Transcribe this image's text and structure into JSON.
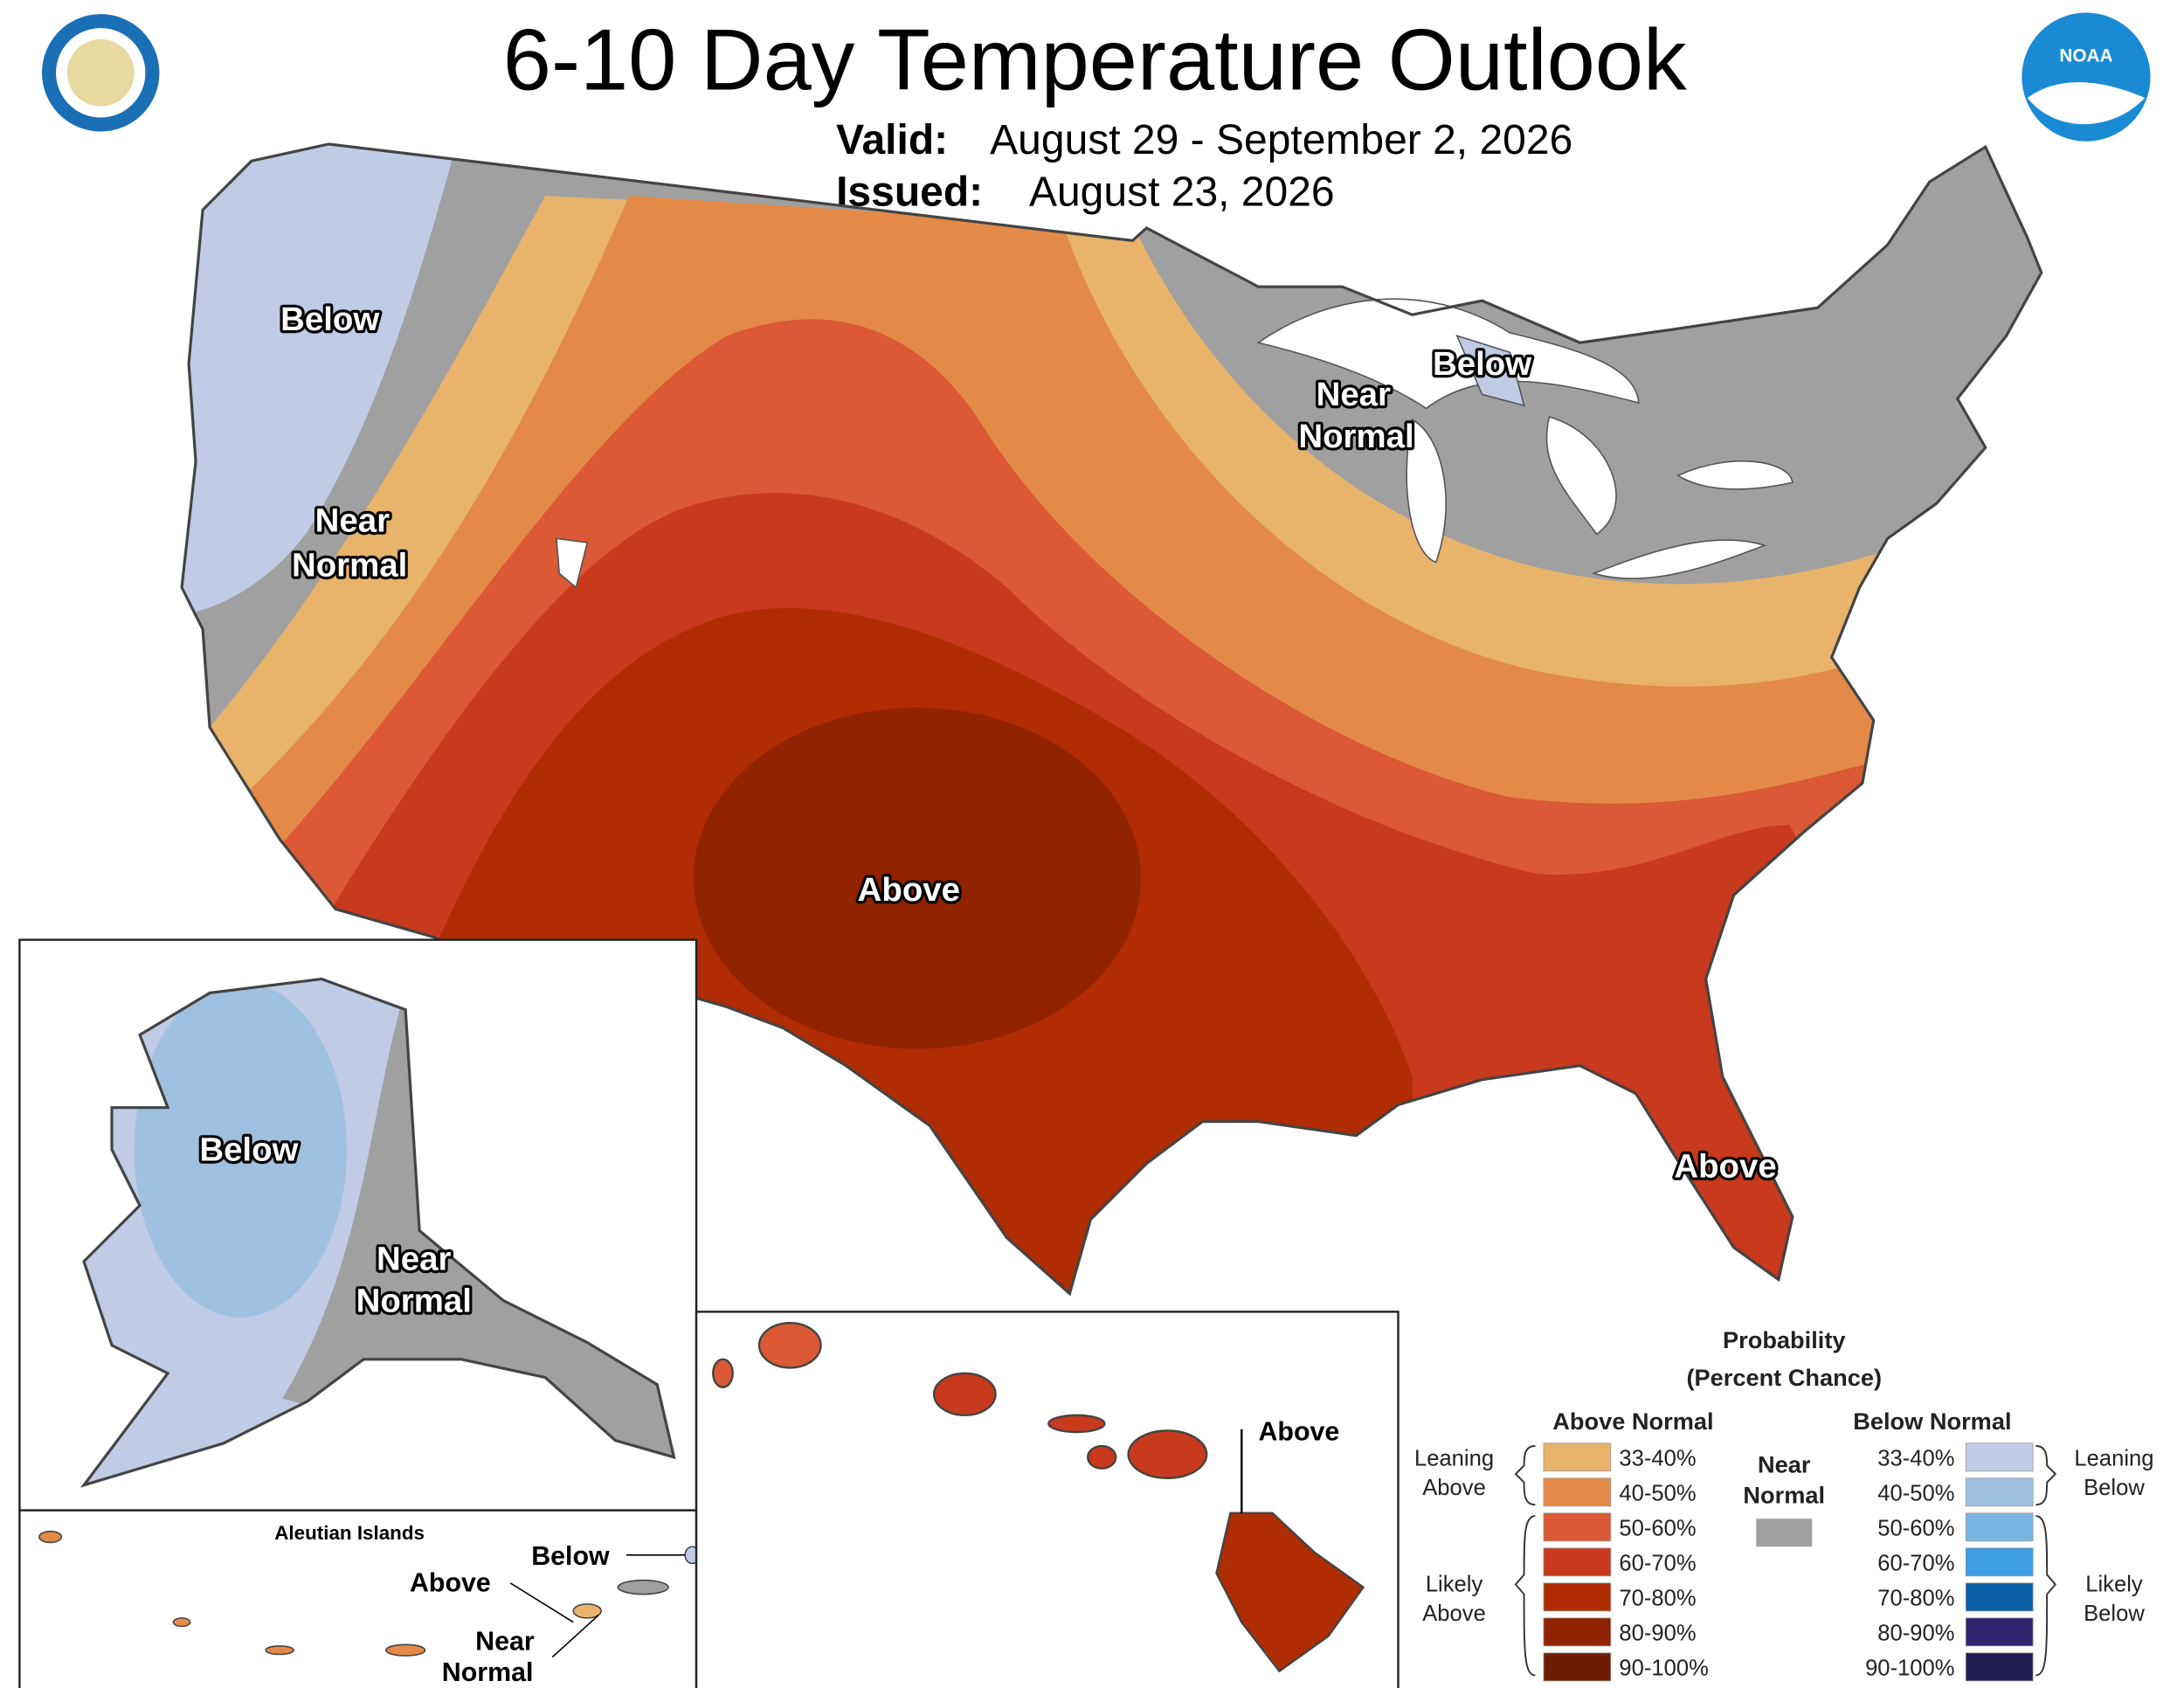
{
  "header": {
    "title": "6-10 Day Temperature Outlook",
    "valid_label": "Valid:",
    "valid": "August 29 - September 2, 2026",
    "issued_label": "Issued:",
    "issued": "August 23, 2026",
    "logo_text": "NOAA"
  },
  "map_labels": {
    "conus": {
      "below_nw": "Below",
      "near_nw": [
        "Near",
        "Normal"
      ],
      "below_mi": "Below",
      "near_ne": [
        "Near",
        "Normal"
      ],
      "above_central": "Above",
      "above_fl": "Above"
    },
    "alaska": {
      "below": "Below",
      "near": [
        "Near",
        "Normal"
      ]
    },
    "aleutians": {
      "title": "Aleutian Islands",
      "below": "Below",
      "above": "Above",
      "near": [
        "Near",
        "Normal"
      ]
    },
    "hawaii": {
      "above": "Above"
    }
  },
  "legend": {
    "title": [
      "Probability",
      "(Percent Chance)"
    ],
    "above": {
      "heading": "Above Normal",
      "bins": [
        {
          "label": "33-40%",
          "color": "#e8b36a"
        },
        {
          "label": "40-50%",
          "color": "#e48a48"
        },
        {
          "label": "50-60%",
          "color": "#db5934"
        },
        {
          "label": "60-70%",
          "color": "#c9391d"
        },
        {
          "label": "70-80%",
          "color": "#b02c03"
        },
        {
          "label": "80-90%",
          "color": "#922300"
        },
        {
          "label": "90-100%",
          "color": "#6e1d00"
        }
      ]
    },
    "below": {
      "heading": "Below Normal",
      "bins": [
        {
          "label": "33-40%",
          "color": "#c0cbe6"
        },
        {
          "label": "40-50%",
          "color": "#a0c0e0"
        },
        {
          "label": "50-60%",
          "color": "#7ab4e4"
        },
        {
          "label": "60-70%",
          "color": "#3e9ce0"
        },
        {
          "label": "70-80%",
          "color": "#0a5ea6"
        },
        {
          "label": "80-90%",
          "color": "#2e2370"
        },
        {
          "label": "90-100%",
          "color": "#1e1b52"
        }
      ]
    },
    "near": {
      "heading": [
        "Near",
        "Normal"
      ],
      "color": "#a0a0a0"
    },
    "groups": {
      "leaning_above": [
        "Leaning",
        "Above"
      ],
      "likely_above": [
        "Likely",
        "Above"
      ],
      "leaning_below": [
        "Leaning",
        "Below"
      ],
      "likely_below": [
        "Likely",
        "Below"
      ]
    }
  }
}
